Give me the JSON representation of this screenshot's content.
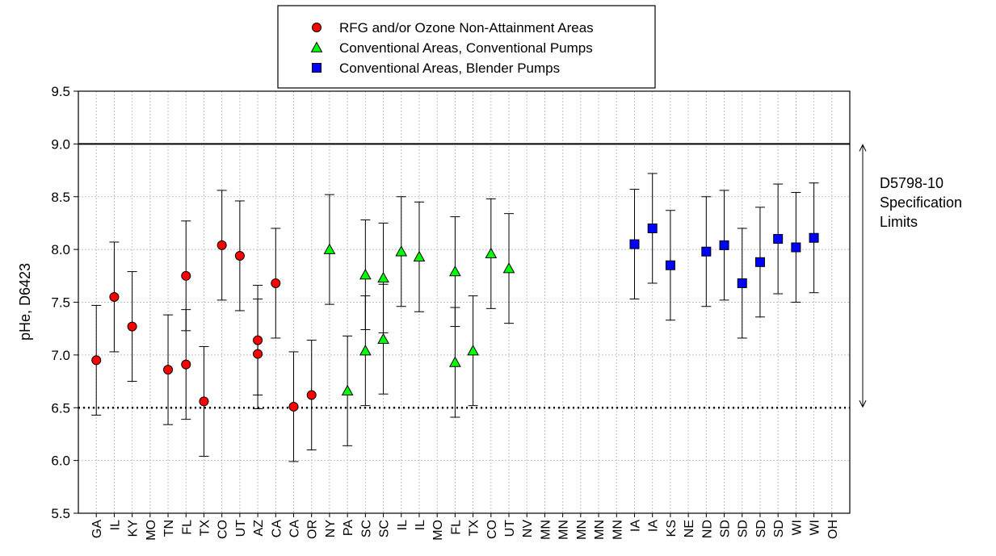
{
  "chart_data": {
    "type": "scatter",
    "title": "",
    "xlabel": "",
    "ylabel": "pHe, D6423",
    "ylim": [
      5.5,
      9.5
    ],
    "yticks": [
      "5.5",
      "6.0",
      "6.5",
      "7.0",
      "7.5",
      "8.0",
      "8.5",
      "9.0",
      "9.5"
    ],
    "grid": true,
    "legend_position": "top-center",
    "categories": [
      "GA",
      "IL",
      "KY",
      "MO",
      "TN",
      "FL",
      "TX",
      "CO",
      "UT",
      "AZ",
      "CA",
      "CA",
      "OR",
      "NY",
      "PA",
      "SC",
      "SC",
      "IL",
      "IL",
      "MO",
      "FL",
      "TX",
      "CO",
      "UT",
      "NV",
      "MN",
      "MN",
      "MN",
      "MN",
      "MN",
      "IA",
      "IA",
      "KS",
      "NE",
      "ND",
      "SD",
      "SD",
      "SD",
      "SD",
      "WI",
      "WI",
      "OH"
    ],
    "error_bar_halfwidth": 0.52,
    "series": [
      {
        "name": "RFG and/or Ozone Non-Attainment Areas",
        "marker": "circle",
        "color": "#ff0000",
        "points": [
          {
            "x": "GA",
            "i": 0,
            "y": 6.95
          },
          {
            "x": "IL",
            "i": 1,
            "y": 7.55
          },
          {
            "x": "KY",
            "i": 2,
            "y": 7.27
          },
          {
            "x": "TN",
            "i": 4,
            "y": 6.86
          },
          {
            "x": "FL",
            "i": 5,
            "y": 7.75
          },
          {
            "x": "FL",
            "i": 5,
            "y": 6.91
          },
          {
            "x": "TX",
            "i": 6,
            "y": 6.56
          },
          {
            "x": "CO",
            "i": 7,
            "y": 8.04
          },
          {
            "x": "UT",
            "i": 8,
            "y": 7.94
          },
          {
            "x": "AZ",
            "i": 9,
            "y": 7.14
          },
          {
            "x": "AZ",
            "i": 9,
            "y": 7.01
          },
          {
            "x": "CA",
            "i": 10,
            "y": 7.68
          },
          {
            "x": "CA",
            "i": 11,
            "y": 6.51
          },
          {
            "x": "OR",
            "i": 12,
            "y": 6.62
          }
        ]
      },
      {
        "name": "Conventional Areas, Conventional Pumps",
        "marker": "triangle",
        "color": "#00ff00",
        "points": [
          {
            "x": "NY",
            "i": 13,
            "y": 8.0
          },
          {
            "x": "PA",
            "i": 14,
            "y": 6.66
          },
          {
            "x": "SC",
            "i": 15,
            "y": 7.76
          },
          {
            "x": "SC",
            "i": 15,
            "y": 7.04
          },
          {
            "x": "SC",
            "i": 16,
            "y": 7.73
          },
          {
            "x": "SC",
            "i": 16,
            "y": 7.15
          },
          {
            "x": "IL",
            "i": 17,
            "y": 7.98
          },
          {
            "x": "IL",
            "i": 18,
            "y": 7.93
          },
          {
            "x": "FL",
            "i": 20,
            "y": 7.79
          },
          {
            "x": "FL",
            "i": 20,
            "y": 6.93
          },
          {
            "x": "TX",
            "i": 21,
            "y": 7.04
          },
          {
            "x": "CO",
            "i": 22,
            "y": 7.96
          },
          {
            "x": "UT",
            "i": 23,
            "y": 7.82
          }
        ]
      },
      {
        "name": "Conventional Areas, Blender Pumps",
        "marker": "square",
        "color": "#0000ff",
        "points": [
          {
            "x": "IA",
            "i": 30,
            "y": 8.05
          },
          {
            "x": "IA",
            "i": 31,
            "y": 8.2
          },
          {
            "x": "KS",
            "i": 32,
            "y": 7.85
          },
          {
            "x": "ND",
            "i": 34,
            "y": 7.98
          },
          {
            "x": "SD",
            "i": 35,
            "y": 8.04
          },
          {
            "x": "SD",
            "i": 36,
            "y": 7.68
          },
          {
            "x": "SD",
            "i": 37,
            "y": 7.88
          },
          {
            "x": "SD",
            "i": 38,
            "y": 8.1
          },
          {
            "x": "WI",
            "i": 39,
            "y": 8.02
          },
          {
            "x": "WI",
            "i": 40,
            "y": 8.11
          }
        ]
      }
    ],
    "reference_lines": [
      {
        "y": 9.0,
        "style": "solid"
      },
      {
        "y": 6.5,
        "style": "dotted"
      }
    ],
    "annotation": {
      "lines": [
        "D5798-10",
        "Specification",
        "Limits"
      ],
      "range": [
        6.5,
        9.0
      ]
    }
  }
}
